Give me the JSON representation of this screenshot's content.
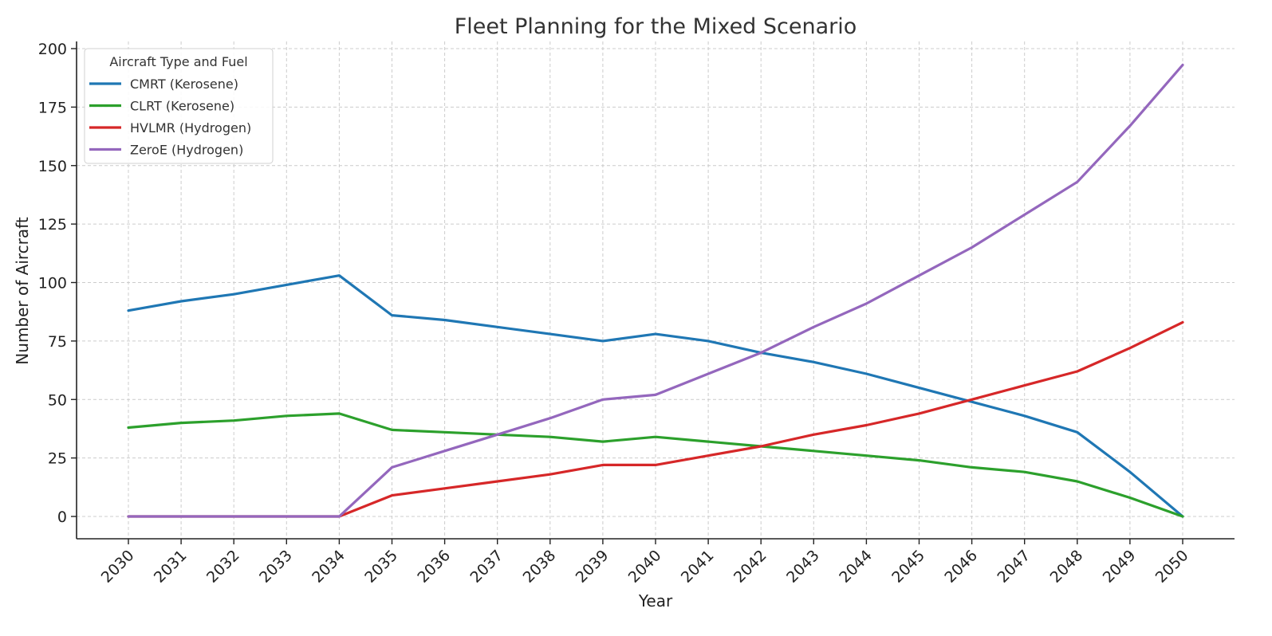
{
  "chart_data": {
    "type": "line",
    "title": "Fleet Planning for the Mixed Scenario",
    "xlabel": "Year",
    "ylabel": "Number of Aircraft",
    "x": [
      2030,
      2031,
      2032,
      2033,
      2034,
      2035,
      2036,
      2037,
      2038,
      2039,
      2040,
      2041,
      2042,
      2043,
      2044,
      2045,
      2046,
      2047,
      2048,
      2049,
      2050
    ],
    "xtick_labels": [
      "2030",
      "2031",
      "2032",
      "2033",
      "2034",
      "2035",
      "2036",
      "2037",
      "2038",
      "2039",
      "2040",
      "2041",
      "2042",
      "2043",
      "2044",
      "2045",
      "2046",
      "2047",
      "2048",
      "2049",
      "2050"
    ],
    "ylim": [
      -10,
      202
    ],
    "yticks": [
      0,
      25,
      50,
      75,
      100,
      125,
      150,
      175,
      200
    ],
    "ytick_labels": [
      "0",
      "25",
      "50",
      "75",
      "100",
      "125",
      "150",
      "175",
      "200"
    ],
    "grid": true,
    "legend": {
      "title": "Aircraft Type and Fuel",
      "placement": "top-left"
    },
    "series": [
      {
        "name": "CMRT (Kerosene)",
        "color": "#1f77b4",
        "values": [
          88,
          92,
          95,
          99,
          103,
          86,
          84,
          81,
          78,
          75,
          78,
          75,
          70,
          66,
          61,
          55,
          49,
          43,
          36,
          19,
          0
        ]
      },
      {
        "name": "CLRT (Kerosene)",
        "color": "#2ca02c",
        "values": [
          38,
          40,
          41,
          43,
          44,
          37,
          36,
          35,
          34,
          32,
          34,
          32,
          30,
          28,
          26,
          24,
          21,
          19,
          15,
          8,
          0
        ]
      },
      {
        "name": "HVLMR (Hydrogen)",
        "color": "#d62728",
        "values": [
          0,
          0,
          0,
          0,
          0,
          9,
          12,
          15,
          18,
          22,
          22,
          26,
          30,
          35,
          39,
          44,
          50,
          56,
          62,
          72,
          83
        ]
      },
      {
        "name": "ZeroE (Hydrogen)",
        "color": "#9467bd",
        "values": [
          0,
          0,
          0,
          0,
          0,
          21,
          28,
          35,
          42,
          50,
          52,
          61,
          70,
          81,
          91,
          103,
          115,
          129,
          143,
          167,
          193
        ]
      }
    ]
  }
}
